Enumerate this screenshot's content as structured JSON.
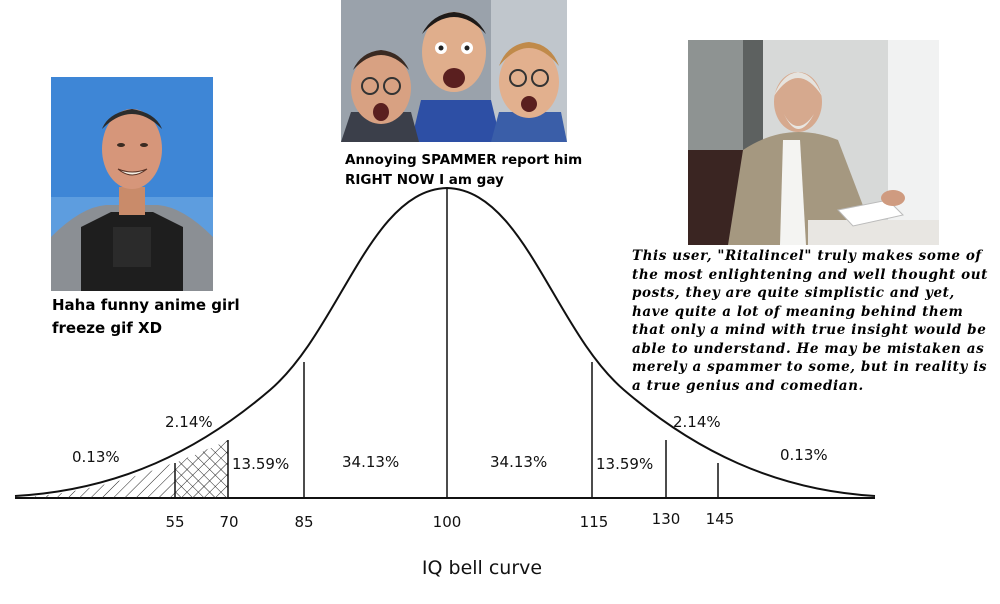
{
  "captions": {
    "left": "Haha funny anime girl freeze gif XD",
    "middle": "Annoying SPAMMER report him RIGHT NOW I am gay",
    "right": "This user, \"Ritalincel\" truly makes some of the most enlightening and well thought out posts, they are quite simplistic and yet, have quite a lot of meaning behind them that only a mind with true insight would be able to understand. He may be mistaken as merely a spammer to some, but in reality is a true genius and comedian."
  },
  "chart": {
    "title": "IQ bell curve",
    "percent_labels": [
      "0.13%",
      "2.14%",
      "13.59%",
      "34.13%",
      "34.13%",
      "13.59%",
      "2.14%",
      "0.13%"
    ],
    "tick_labels": [
      "55",
      "70",
      "85",
      "100",
      "115",
      "130",
      "145"
    ]
  }
}
